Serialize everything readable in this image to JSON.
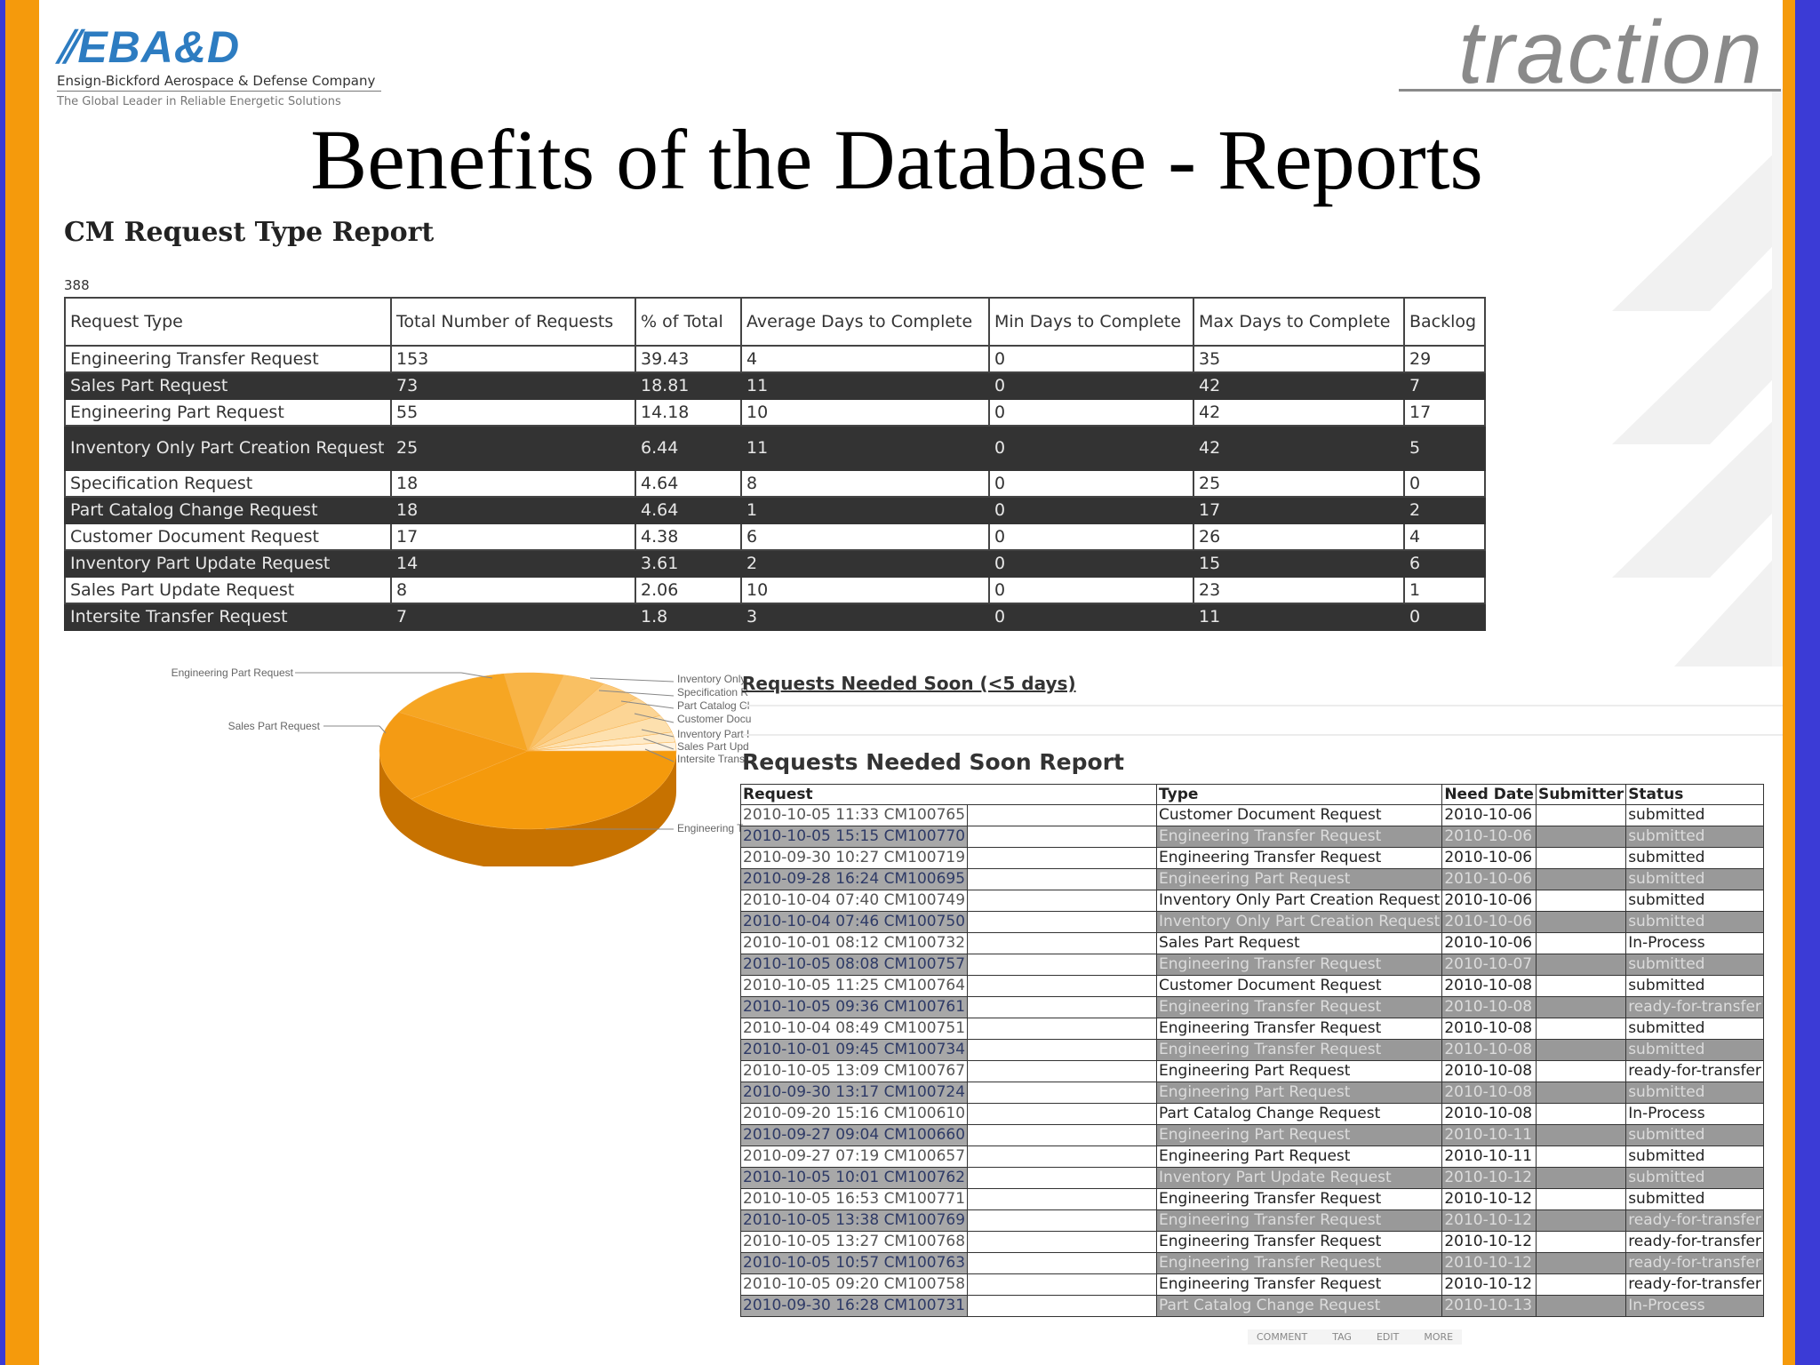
{
  "logo": {
    "main": "EBA&D",
    "sub": "Ensign-Bickford Aerospace & Defense Company",
    "tagline": "The Global Leader in Reliable Energetic Solutions"
  },
  "brand_right": "traction",
  "slide_title": "Benefits of the Database - Reports",
  "cm_report": {
    "title": "CM Request Type Report",
    "total": "388",
    "headers": [
      "Request Type",
      "Total Number of Requests",
      "% of Total",
      "Average Days to Complete",
      "Min Days to Complete",
      "Max Days to Complete",
      "Backlog"
    ],
    "rows": [
      [
        "Engineering Transfer Request",
        "153",
        "39.43",
        "4",
        "0",
        "35",
        "29"
      ],
      [
        "Sales Part Request",
        "73",
        "18.81",
        "11",
        "0",
        "42",
        "7"
      ],
      [
        "Engineering Part Request",
        "55",
        "14.18",
        "10",
        "0",
        "42",
        "17"
      ],
      [
        "Inventory Only Part Creation Request",
        "25",
        "6.44",
        "11",
        "0",
        "42",
        "5"
      ],
      [
        "Specification Request",
        "18",
        "4.64",
        "8",
        "0",
        "25",
        "0"
      ],
      [
        "Part Catalog Change Request",
        "18",
        "4.64",
        "1",
        "0",
        "17",
        "2"
      ],
      [
        "Customer Document Request",
        "17",
        "4.38",
        "6",
        "0",
        "26",
        "4"
      ],
      [
        "Inventory Part Update Request",
        "14",
        "3.61",
        "2",
        "0",
        "15",
        "6"
      ],
      [
        "Sales Part Update Request",
        "8",
        "2.06",
        "10",
        "0",
        "23",
        "1"
      ],
      [
        "Intersite Transfer Request",
        "7",
        "1.8",
        "3",
        "0",
        "11",
        "0"
      ]
    ]
  },
  "pie_labels": {
    "left": [
      "Engineering Part Request",
      "Sales Part Request"
    ],
    "right": [
      "Inventory Only",
      "Specification R",
      "Part Catalog Cl",
      "Customer Docu",
      "Inventory Part I",
      "Sales Part Upd",
      "Intersite Transf",
      "Engineering Tr"
    ]
  },
  "chart_data": {
    "type": "pie",
    "categories": [
      "Engineering Transfer Request",
      "Sales Part Request",
      "Engineering Part Request",
      "Inventory Only Part Creation Request",
      "Specification Request",
      "Part Catalog Change Request",
      "Customer Document Request",
      "Inventory Part Update Request",
      "Sales Part Update Request",
      "Intersite Transfer Request"
    ],
    "values": [
      153,
      73,
      55,
      25,
      18,
      18,
      17,
      14,
      8,
      7
    ],
    "colors": [
      "#f59a0c",
      "#f49b14",
      "#f6a623",
      "#f8b446",
      "#f9c063",
      "#fbca7c",
      "#fcd595",
      "#fde0ae",
      "#feeac8",
      "#fff3e0"
    ]
  },
  "soon": {
    "link": "Requests Needed Soon (<5 days)",
    "title": "Requests Needed Soon Report",
    "headers": [
      "Request",
      "Type",
      "Need Date",
      "Submitter",
      "Status"
    ],
    "rows": [
      [
        "2010-10-05 11:33 CM100765",
        "Customer Document Request",
        "2010-10-06",
        "",
        "submitted"
      ],
      [
        "2010-10-05 15:15 CM100770",
        "Engineering Transfer Request",
        "2010-10-06",
        "",
        "submitted"
      ],
      [
        "2010-09-30 10:27 CM100719",
        "Engineering Transfer Request",
        "2010-10-06",
        "",
        "submitted"
      ],
      [
        "2010-09-28 16:24 CM100695",
        "Engineering Part Request",
        "2010-10-06",
        "",
        "submitted"
      ],
      [
        "2010-10-04 07:40 CM100749",
        "Inventory Only Part Creation Request",
        "2010-10-06",
        "",
        "submitted"
      ],
      [
        "2010-10-04 07:46 CM100750",
        "Inventory Only Part Creation Request",
        "2010-10-06",
        "",
        "submitted"
      ],
      [
        "2010-10-01 08:12 CM100732",
        "Sales Part Request",
        "2010-10-06",
        "",
        "In-Process"
      ],
      [
        "2010-10-05 08:08 CM100757",
        "Engineering Transfer Request",
        "2010-10-07",
        "",
        "submitted"
      ],
      [
        "2010-10-05 11:25 CM100764",
        "Customer Document Request",
        "2010-10-08",
        "",
        "submitted"
      ],
      [
        "2010-10-05 09:36 CM100761",
        "Engineering Transfer Request",
        "2010-10-08",
        "",
        "ready-for-transfer"
      ],
      [
        "2010-10-04 08:49 CM100751",
        "Engineering Transfer Request",
        "2010-10-08",
        "",
        "submitted"
      ],
      [
        "2010-10-01 09:45 CM100734",
        "Engineering Transfer Request",
        "2010-10-08",
        "",
        "submitted"
      ],
      [
        "2010-10-05 13:09 CM100767",
        "Engineering Part Request",
        "2010-10-08",
        "",
        "ready-for-transfer"
      ],
      [
        "2010-09-30 13:17 CM100724",
        "Engineering Part Request",
        "2010-10-08",
        "",
        "submitted"
      ],
      [
        "2010-09-20 15:16 CM100610",
        "Part Catalog Change Request",
        "2010-10-08",
        "",
        "In-Process"
      ],
      [
        "2010-09-27 09:04 CM100660",
        "Engineering Part Request",
        "2010-10-11",
        "",
        "submitted"
      ],
      [
        "2010-09-27 07:19 CM100657",
        "Engineering Part Request",
        "2010-10-11",
        "",
        "submitted"
      ],
      [
        "2010-10-05 10:01 CM100762",
        "Inventory Part Update Request",
        "2010-10-12",
        "",
        "submitted"
      ],
      [
        "2010-10-05 16:53 CM100771",
        "Engineering Transfer Request",
        "2010-10-12",
        "",
        "submitted"
      ],
      [
        "2010-10-05 13:38 CM100769",
        "Engineering Transfer Request",
        "2010-10-12",
        "",
        "ready-for-transfer"
      ],
      [
        "2010-10-05 13:27 CM100768",
        "Engineering Transfer Request",
        "2010-10-12",
        "",
        "ready-for-transfer"
      ],
      [
        "2010-10-05 10:57 CM100763",
        "Engineering Transfer Request",
        "2010-10-12",
        "",
        "ready-for-transfer"
      ],
      [
        "2010-10-05 09:20 CM100758",
        "Engineering Transfer Request",
        "2010-10-12",
        "",
        "ready-for-transfer"
      ],
      [
        "2010-09-30 16:28 CM100731",
        "Part Catalog Change Request",
        "2010-10-13",
        "",
        "In-Process"
      ]
    ]
  },
  "toolbar": [
    "COMMENT",
    "TAG",
    "EDIT",
    "MORE"
  ],
  "colors": {
    "orange": "#f59a0c",
    "blue": "#3b3bd6",
    "logo_blue": "#2d7cc1"
  }
}
